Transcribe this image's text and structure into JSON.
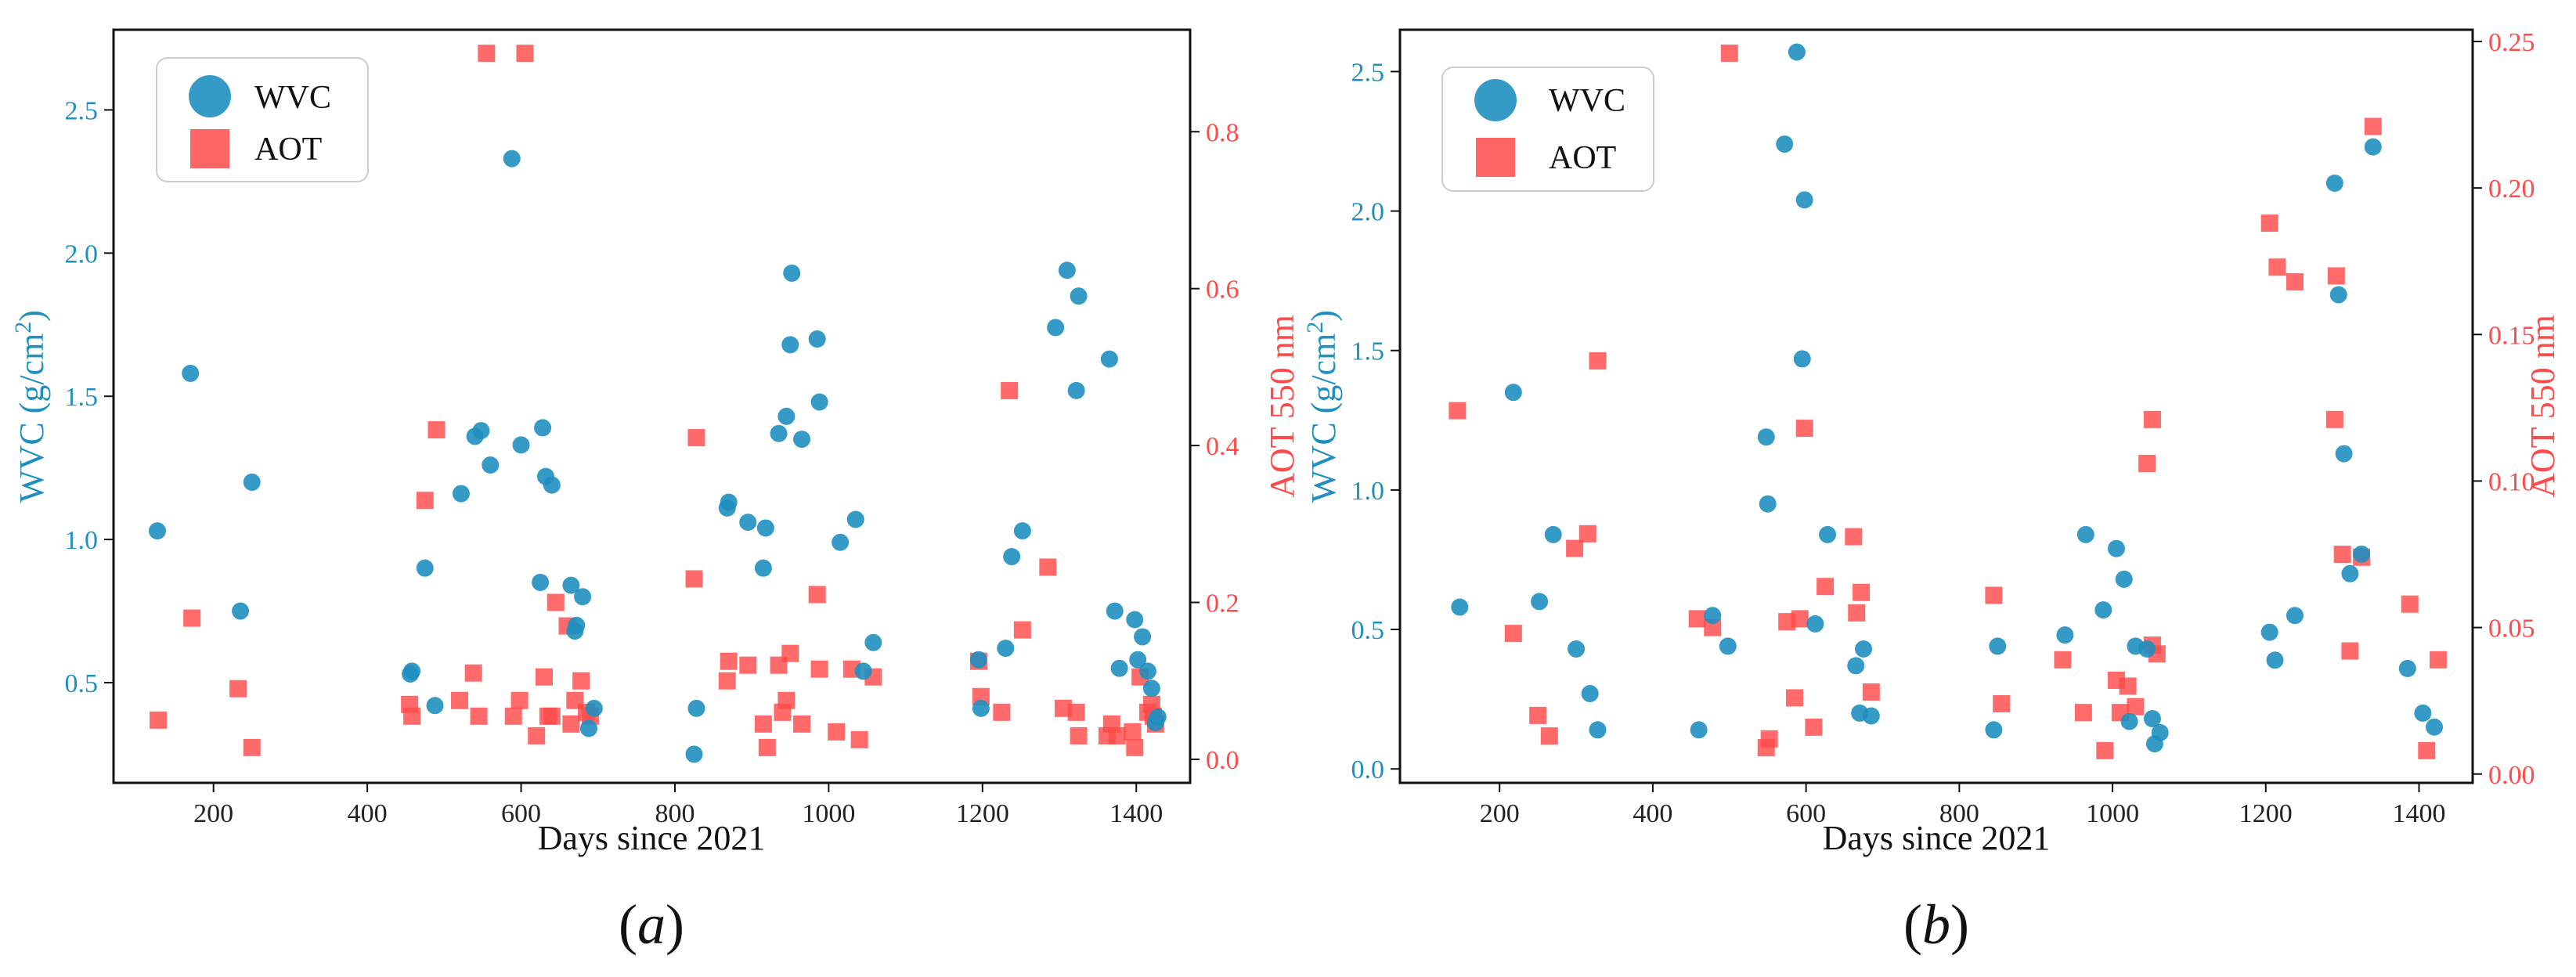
{
  "colors": {
    "wvc": "#1f8fbf",
    "aot": "#ff4a4a"
  },
  "chart_data": [
    {
      "type": "scatter",
      "panel_label": "(a)",
      "panel_letter": "a",
      "xlabel": "Days since 2021",
      "ylabel_left_main": "WVC (g/cm",
      "ylabel_left_sup": "2",
      "ylabel_left_close": ")",
      "ylabel_right": "AOT 550 nm",
      "xlim": [
        70,
        1470
      ],
      "ylim_left": [
        0.15,
        2.78
      ],
      "ylim_right": [
        -0.03,
        0.93
      ],
      "x_ticks": [
        200,
        400,
        600,
        800,
        1000,
        1200,
        1400
      ],
      "y_left_ticks": [
        0.5,
        1.0,
        1.5,
        2.0,
        2.5
      ],
      "y_left_tick_labels": [
        "0.5",
        "1.0",
        "1.5",
        "2.0",
        "2.5"
      ],
      "y_right_ticks": [
        0.0,
        0.2,
        0.4,
        0.6,
        0.8
      ],
      "y_right_tick_labels": [
        "0.0",
        "0.2",
        "0.4",
        "0.6",
        "0.8"
      ],
      "legend": {
        "location": "top-left",
        "entries": [
          "WVC",
          "AOT"
        ]
      },
      "series": [
        {
          "name": "WVC",
          "axis": "left",
          "marker": "circle",
          "points": [
            [
              127,
              1.03
            ],
            [
              170,
              1.58
            ],
            [
              235,
              0.75
            ],
            [
              250,
              1.2
            ],
            [
              456,
              0.53
            ],
            [
              458,
              0.54
            ],
            [
              475,
              0.9
            ],
            [
              488,
              0.42
            ],
            [
              522,
              1.16
            ],
            [
              540,
              1.36
            ],
            [
              548,
              1.38
            ],
            [
              560,
              1.26
            ],
            [
              588,
              2.33
            ],
            [
              600,
              1.33
            ],
            [
              625,
              0.85
            ],
            [
              628,
              1.39
            ],
            [
              632,
              1.22
            ],
            [
              640,
              1.19
            ],
            [
              665,
              0.84
            ],
            [
              670,
              0.68
            ],
            [
              672,
              0.7
            ],
            [
              680,
              0.8
            ],
            [
              688,
              0.34
            ],
            [
              695,
              0.41
            ],
            [
              825,
              0.25
            ],
            [
              828,
              0.41
            ],
            [
              868,
              1.11
            ],
            [
              870,
              1.13
            ],
            [
              895,
              1.06
            ],
            [
              915,
              0.9
            ],
            [
              918,
              1.04
            ],
            [
              935,
              1.37
            ],
            [
              945,
              1.43
            ],
            [
              950,
              1.68
            ],
            [
              952,
              1.93
            ],
            [
              965,
              1.35
            ],
            [
              985,
              1.7
            ],
            [
              988,
              1.48
            ],
            [
              1015,
              0.99
            ],
            [
              1035,
              1.07
            ],
            [
              1045,
              0.54
            ],
            [
              1058,
              0.64
            ],
            [
              1195,
              0.58
            ],
            [
              1198,
              0.41
            ],
            [
              1230,
              0.62
            ],
            [
              1238,
              0.94
            ],
            [
              1252,
              1.03
            ],
            [
              1295,
              1.74
            ],
            [
              1310,
              1.94
            ],
            [
              1322,
              1.52
            ],
            [
              1325,
              1.85
            ],
            [
              1365,
              1.63
            ],
            [
              1372,
              0.75
            ],
            [
              1378,
              0.55
            ],
            [
              1398,
              0.72
            ],
            [
              1402,
              0.58
            ],
            [
              1408,
              0.66
            ],
            [
              1415,
              0.54
            ],
            [
              1420,
              0.48
            ],
            [
              1425,
              0.36
            ],
            [
              1428,
              0.38
            ]
          ]
        },
        {
          "name": "AOT",
          "axis": "right",
          "marker": "square",
          "points": [
            [
              128,
              0.05
            ],
            [
              172,
              0.18
            ],
            [
              232,
              0.09
            ],
            [
              250,
              0.015
            ],
            [
              455,
              0.07
            ],
            [
              458,
              0.055
            ],
            [
              475,
              0.33
            ],
            [
              490,
              0.42
            ],
            [
              520,
              0.075
            ],
            [
              538,
              0.11
            ],
            [
              545,
              0.055
            ],
            [
              555,
              0.9
            ],
            [
              590,
              0.055
            ],
            [
              598,
              0.075
            ],
            [
              605,
              0.9
            ],
            [
              620,
              0.03
            ],
            [
              630,
              0.105
            ],
            [
              635,
              0.055
            ],
            [
              640,
              0.055
            ],
            [
              645,
              0.2
            ],
            [
              660,
              0.17
            ],
            [
              665,
              0.045
            ],
            [
              670,
              0.075
            ],
            [
              678,
              0.1
            ],
            [
              685,
              0.06
            ],
            [
              690,
              0.055
            ],
            [
              825,
              0.23
            ],
            [
              828,
              0.41
            ],
            [
              868,
              0.1
            ],
            [
              870,
              0.125
            ],
            [
              895,
              0.12
            ],
            [
              915,
              0.045
            ],
            [
              920,
              0.015
            ],
            [
              935,
              0.12
            ],
            [
              940,
              0.06
            ],
            [
              945,
              0.075
            ],
            [
              950,
              0.135
            ],
            [
              965,
              0.045
            ],
            [
              985,
              0.21
            ],
            [
              988,
              0.115
            ],
            [
              1010,
              0.035
            ],
            [
              1030,
              0.115
            ],
            [
              1040,
              0.025
            ],
            [
              1058,
              0.105
            ],
            [
              1195,
              0.125
            ],
            [
              1198,
              0.08
            ],
            [
              1225,
              0.06
            ],
            [
              1235,
              0.47
            ],
            [
              1252,
              0.165
            ],
            [
              1285,
              0.245
            ],
            [
              1305,
              0.065
            ],
            [
              1322,
              0.06
            ],
            [
              1325,
              0.03
            ],
            [
              1362,
              0.03
            ],
            [
              1368,
              0.045
            ],
            [
              1375,
              0.03
            ],
            [
              1395,
              0.035
            ],
            [
              1398,
              0.015
            ],
            [
              1405,
              0.105
            ],
            [
              1415,
              0.06
            ],
            [
              1420,
              0.07
            ],
            [
              1422,
              0.055
            ],
            [
              1425,
              0.045
            ]
          ]
        }
      ]
    },
    {
      "type": "scatter",
      "panel_label": "(b)",
      "panel_letter": "b",
      "xlabel": "Days since 2021",
      "ylabel_left_main": "WVC (g/cm",
      "ylabel_left_sup": "2",
      "ylabel_left_close": ")",
      "ylabel_right": "AOT 550 nm",
      "xlim": [
        70,
        1470
      ],
      "ylim_left": [
        -0.05,
        2.65
      ],
      "ylim_right": [
        -0.003,
        0.254
      ],
      "x_ticks": [
        200,
        400,
        600,
        800,
        1000,
        1200,
        1400
      ],
      "y_left_ticks": [
        0.0,
        0.5,
        1.0,
        1.5,
        2.0,
        2.5
      ],
      "y_left_tick_labels": [
        "0.0",
        "0.5",
        "1.0",
        "1.5",
        "2.0",
        "2.5"
      ],
      "y_right_ticks": [
        0.0,
        0.05,
        0.1,
        0.15,
        0.2,
        0.25
      ],
      "y_right_tick_labels": [
        "0.00",
        "0.05",
        "0.10",
        "0.15",
        "0.20",
        "0.25"
      ],
      "legend": {
        "location": "top-left",
        "entries": [
          "WVC",
          "AOT"
        ]
      },
      "series": [
        {
          "name": "WVC",
          "axis": "left",
          "marker": "circle",
          "points": [
            [
              148,
              0.58
            ],
            [
              218,
              1.35
            ],
            [
              252,
              0.6
            ],
            [
              270,
              0.84
            ],
            [
              300,
              0.43
            ],
            [
              318,
              0.27
            ],
            [
              328,
              0.14
            ],
            [
              460,
              0.14
            ],
            [
              478,
              0.55
            ],
            [
              498,
              0.44
            ],
            [
              548,
              1.19
            ],
            [
              550,
              0.95
            ],
            [
              572,
              2.24
            ],
            [
              588,
              2.57
            ],
            [
              595,
              1.47
            ],
            [
              598,
              2.04
            ],
            [
              612,
              0.52
            ],
            [
              628,
              0.84
            ],
            [
              665,
              0.37
            ],
            [
              670,
              0.2
            ],
            [
              675,
              0.43
            ],
            [
              685,
              0.19
            ],
            [
              845,
              0.14
            ],
            [
              850,
              0.44
            ],
            [
              938,
              0.48
            ],
            [
              965,
              0.84
            ],
            [
              988,
              0.57
            ],
            [
              1005,
              0.79
            ],
            [
              1015,
              0.68
            ],
            [
              1022,
              0.17
            ],
            [
              1030,
              0.44
            ],
            [
              1045,
              0.43
            ],
            [
              1055,
              0.09
            ],
            [
              1052,
              0.18
            ],
            [
              1062,
              0.13
            ],
            [
              1205,
              0.49
            ],
            [
              1212,
              0.39
            ],
            [
              1238,
              0.55
            ],
            [
              1290,
              2.1
            ],
            [
              1295,
              1.7
            ],
            [
              1302,
              1.13
            ],
            [
              1310,
              0.7
            ],
            [
              1325,
              0.77
            ],
            [
              1340,
              2.23
            ],
            [
              1385,
              0.36
            ],
            [
              1405,
              0.2
            ],
            [
              1420,
              0.15
            ]
          ]
        },
        {
          "name": "AOT",
          "axis": "right",
          "marker": "square",
          "points": [
            [
              145,
              0.124
            ],
            [
              218,
              0.048
            ],
            [
              250,
              0.02
            ],
            [
              265,
              0.013
            ],
            [
              298,
              0.077
            ],
            [
              315,
              0.082
            ],
            [
              328,
              0.141
            ],
            [
              458,
              0.053
            ],
            [
              478,
              0.05
            ],
            [
              500,
              0.246
            ],
            [
              548,
              0.009
            ],
            [
              552,
              0.012
            ],
            [
              575,
              0.052
            ],
            [
              585,
              0.026
            ],
            [
              592,
              0.053
            ],
            [
              598,
              0.118
            ],
            [
              610,
              0.016
            ],
            [
              625,
              0.064
            ],
            [
              662,
              0.081
            ],
            [
              666,
              0.055
            ],
            [
              672,
              0.062
            ],
            [
              685,
              0.028
            ],
            [
              845,
              0.061
            ],
            [
              855,
              0.024
            ],
            [
              935,
              0.039
            ],
            [
              962,
              0.021
            ],
            [
              990,
              0.008
            ],
            [
              1005,
              0.032
            ],
            [
              1010,
              0.021
            ],
            [
              1020,
              0.03
            ],
            [
              1030,
              0.023
            ],
            [
              1045,
              0.106
            ],
            [
              1052,
              0.121
            ],
            [
              1052,
              0.044
            ],
            [
              1058,
              0.041
            ],
            [
              1205,
              0.188
            ],
            [
              1215,
              0.173
            ],
            [
              1238,
              0.168
            ],
            [
              1290,
              0.121
            ],
            [
              1292,
              0.17
            ],
            [
              1300,
              0.075
            ],
            [
              1310,
              0.042
            ],
            [
              1325,
              0.074
            ],
            [
              1340,
              0.221
            ],
            [
              1388,
              0.058
            ],
            [
              1410,
              0.008
            ],
            [
              1425,
              0.039
            ]
          ]
        }
      ]
    }
  ]
}
